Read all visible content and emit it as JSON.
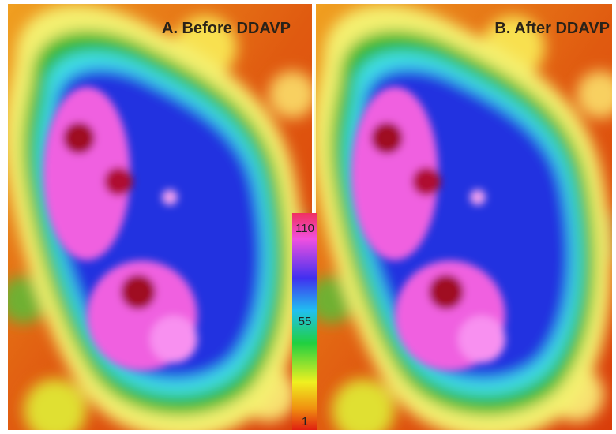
{
  "panels": [
    {
      "title": "A. Before DDAVP"
    },
    {
      "title": "B. After DDAVP"
    }
  ],
  "colorbar": {
    "labels": [
      "110",
      "55",
      "1"
    ]
  }
}
